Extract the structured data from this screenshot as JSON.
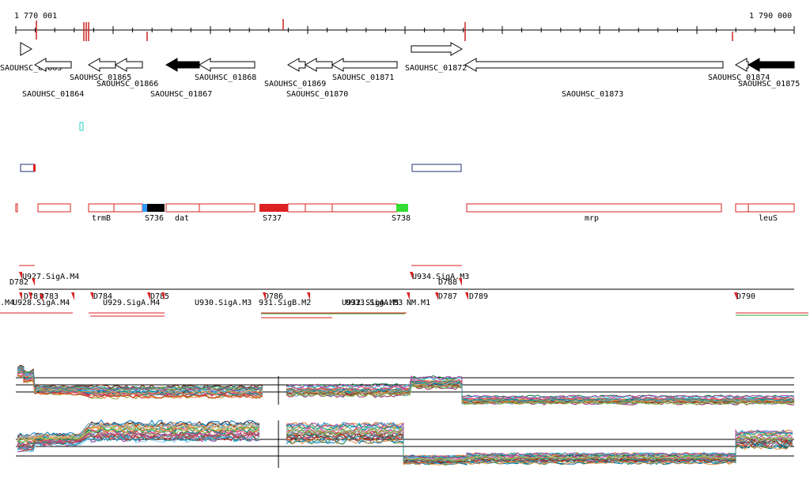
{
  "ruler": {
    "start_label": "1 770 001",
    "end_label": "1 790 000"
  },
  "genes": [
    {
      "label": "SAOUHSC_01863",
      "filled": false
    },
    {
      "label": "SAOUHSC_01864",
      "filled": false
    },
    {
      "label": "SAOUHSC_01865",
      "filled": false
    },
    {
      "label": "SAOUHSC_01866",
      "filled": false
    },
    {
      "label": "SAOUHSC_01867",
      "filled": true
    },
    {
      "label": "SAOUHSC_01868",
      "filled": false
    },
    {
      "label": "SAOUHSC_01869",
      "filled": false
    },
    {
      "label": "SAOUHSC_01870",
      "filled": false
    },
    {
      "label": "SAOUHSC_01871",
      "filled": false
    },
    {
      "label": "SAOUHSC_01872",
      "filled": false
    },
    {
      "label": "SAOUHSC_01873",
      "filled": false
    },
    {
      "label": "SAOUHSC_01874",
      "filled": false
    },
    {
      "label": "SAOUHSC_01875",
      "filled": true
    }
  ],
  "operons": [
    {
      "label": "trmB"
    },
    {
      "label": "S736"
    },
    {
      "label": "dat"
    },
    {
      "label": "S737"
    },
    {
      "label": "S738"
    },
    {
      "label": "mrp"
    },
    {
      "label": "leuS"
    }
  ],
  "features": [
    {
      "label": "U927.SigA.M4"
    },
    {
      "label": "D782"
    },
    {
      "label": "U928.SigA.M4"
    },
    {
      "label": ".M4"
    },
    {
      "label": "D78"
    },
    {
      "label": "D783"
    },
    {
      "label": "D784"
    },
    {
      "label": "U929.SigA.M4"
    },
    {
      "label": "D785"
    },
    {
      "label": "U930.SigA.M3"
    },
    {
      "label": "D786"
    },
    {
      "label": "931.SigB.M2"
    },
    {
      "label": "U932.SigA.M5"
    },
    {
      "label": "U933.SigA.M3"
    },
    {
      "label": "NM.M1"
    },
    {
      "label": "U934.SigA.M3"
    },
    {
      "label": "D788"
    },
    {
      "label": "D787"
    },
    {
      "label": "D789"
    },
    {
      "label": "D790"
    }
  ],
  "colors": {
    "tick": "#cc2222",
    "outline_red": "#dd2222",
    "outline_blue": "#22337a",
    "cyan": "#22cccc",
    "blue_seg": "#3399ff",
    "green_seg": "#33dd33",
    "green_line": "#33aa33"
  }
}
